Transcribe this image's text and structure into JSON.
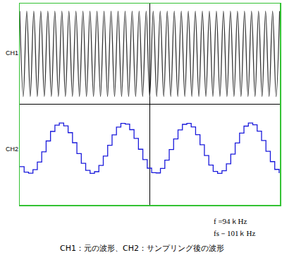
{
  "chart_data": {
    "type": "line",
    "xlim": [
      -5,
      5
    ],
    "ylim": [
      -4,
      4
    ],
    "xticks": [
      0
    ],
    "yticks": [
      0
    ],
    "grid": true,
    "tick_labels": false,
    "series": [
      {
        "name": "CH1",
        "color": "#333333",
        "line_style": "spline",
        "x": [
          -5,
          -4.865,
          -4.73,
          -4.595,
          -4.46,
          -4.325,
          -4.19,
          -4.055,
          -3.92,
          -3.785,
          -3.65,
          -3.515,
          -3.38,
          -3.245,
          -3.11,
          -2.975,
          -2.84,
          -2.705,
          -2.57,
          -2.435,
          -2.3,
          -2.165,
          -2.03,
          -1.895,
          -1.76,
          -1.625,
          -1.49,
          -1.355,
          -1.22,
          -1.085,
          -0.95,
          -0.815,
          -0.68,
          -0.545,
          -0.41,
          -0.275,
          -0.14,
          -0.005,
          0.13,
          0.265,
          0.4,
          0.535,
          0.67,
          0.805,
          0.94,
          1.075,
          1.21,
          1.345,
          1.48,
          1.615,
          1.75,
          1.885,
          2.02,
          2.155,
          2.29,
          2.425,
          2.56,
          2.695,
          2.83,
          2.965,
          3.1,
          3.235,
          3.37,
          3.505,
          3.64,
          3.775,
          3.91,
          4.045,
          4.18,
          4.315,
          4.45,
          4.585,
          4.72,
          4.855,
          4.99
        ],
        "values": [
          3.7,
          0.3,
          3.7,
          0.3,
          3.7,
          0.3,
          3.7,
          0.3,
          3.7,
          0.3,
          3.7,
          0.3,
          3.7,
          0.3,
          3.7,
          0.3,
          3.7,
          0.3,
          3.7,
          0.3,
          3.7,
          0.3,
          3.7,
          0.3,
          3.7,
          0.3,
          3.7,
          0.3,
          3.7,
          0.3,
          3.7,
          0.3,
          3.7,
          0.3,
          3.7,
          0.3,
          3.7,
          0.3,
          3.7,
          0.3,
          3.7,
          0.3,
          3.7,
          0.3,
          3.7,
          0.3,
          3.7,
          0.3,
          3.7,
          0.3,
          3.7,
          0.3,
          3.7,
          0.3,
          3.7,
          0.3,
          3.7,
          0.3,
          3.7,
          0.3,
          3.7,
          0.3,
          3.7,
          0.3,
          3.7,
          0.3,
          3.7,
          0.3,
          3.7,
          0.3,
          3.7,
          0.3,
          3.7,
          0.3,
          3.7
        ]
      },
      {
        "name": "CH2",
        "color": "#1a1adc",
        "line_style": "steps",
        "x": [
          -5,
          -4.831,
          -4.662,
          -4.493,
          -4.324,
          -4.155,
          -3.986,
          -3.817,
          -3.648,
          -3.479,
          -3.31,
          -3.141,
          -2.972,
          -2.803,
          -2.634,
          -2.465,
          -2.296,
          -2.127,
          -1.958,
          -1.789,
          -1.62,
          -1.451,
          -1.282,
          -1.113,
          -0.944,
          -0.775,
          -0.606,
          -0.437,
          -0.268,
          -0.099,
          0.07,
          0.239,
          0.408,
          0.577,
          0.746,
          0.915,
          1.084,
          1.253,
          1.422,
          1.591,
          1.76,
          1.929,
          2.098,
          2.267,
          2.436,
          2.605,
          2.774,
          2.943,
          3.112,
          3.281,
          3.45,
          3.619,
          3.788,
          3.957,
          4.126,
          4.295,
          4.464,
          4.633,
          4.802,
          4.971
        ],
        "values": [
          -2.48,
          -2.7,
          -2.74,
          -2.6,
          -2.3,
          -1.89,
          -1.46,
          -1.08,
          -0.83,
          -0.75,
          -0.86,
          -1.13,
          -1.53,
          -1.96,
          -2.35,
          -2.63,
          -2.75,
          -2.68,
          -2.43,
          -2.06,
          -1.63,
          -1.22,
          -0.91,
          -0.76,
          -0.79,
          -1.01,
          -1.36,
          -1.79,
          -2.2,
          -2.54,
          -2.72,
          -2.73,
          -2.55,
          -2.22,
          -1.8,
          -1.38,
          -1.02,
          -0.8,
          -0.76,
          -0.9,
          -1.21,
          -1.61,
          -2.04,
          -2.42,
          -2.67,
          -2.75,
          -2.64,
          -2.37,
          -1.98,
          -1.54,
          -1.15,
          -0.87,
          -0.75,
          -0.82,
          -1.07,
          -1.44,
          -1.87,
          -2.28,
          -2.59,
          -2.74
        ]
      }
    ],
    "annotations": [
      "f =94ｋHz",
      "fs－101ｋHz",
      "CH1：元の波形、CH2：サンプリング後の波形"
    ]
  }
}
